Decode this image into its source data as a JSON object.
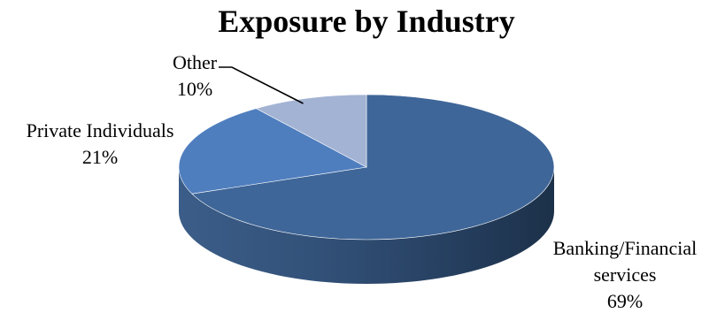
{
  "chart_data": {
    "type": "pie",
    "title": "Exposure by Industry",
    "slices": [
      {
        "name": "Banking/Financial services",
        "label_lines": [
          "Banking/Financial",
          "services"
        ],
        "value": 69,
        "value_label": "69%",
        "color": "#3F6698"
      },
      {
        "name": "Private Individuals",
        "label_lines": [
          "Private Individuals"
        ],
        "value": 21,
        "value_label": "21%",
        "color": "#4F7EBE"
      },
      {
        "name": "Other",
        "label_lines": [
          "Other"
        ],
        "value": 10,
        "value_label": "10%",
        "color": "#A3B3D4"
      }
    ],
    "start": "top, clockwise",
    "style": "3d",
    "legend": "none"
  }
}
